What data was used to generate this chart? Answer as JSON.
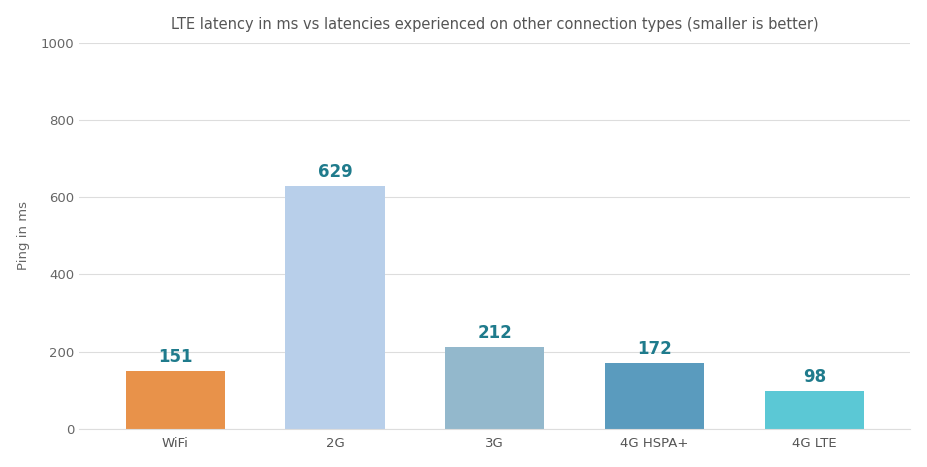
{
  "categories": [
    "WiFi",
    "2G",
    "3G",
    "4G HSPA+",
    "4G LTE"
  ],
  "values": [
    151,
    629,
    212,
    172,
    98
  ],
  "bar_colors": [
    "#E8924A",
    "#B8CFEA",
    "#93B8CC",
    "#5A9BBE",
    "#5BC8D5"
  ],
  "value_color": "#1F7B8C",
  "title": "LTE latency in ms vs latencies experienced on other connection types (smaller is better)",
  "ylabel": "Ping in ms",
  "ylim": [
    0,
    1000
  ],
  "yticks": [
    0,
    200,
    400,
    600,
    800,
    1000
  ],
  "title_fontsize": 10.5,
  "label_fontsize": 9.5,
  "tick_fontsize": 9.5,
  "value_fontsize": 12,
  "background_color": "#FFFFFF",
  "grid_color": "#DDDDDD"
}
